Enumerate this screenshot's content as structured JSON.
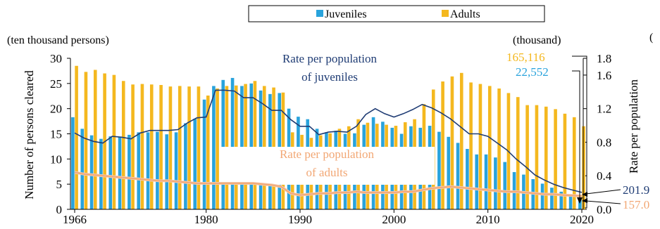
{
  "chart_data": {
    "type": "bar",
    "categories": [
      1966,
      1967,
      1968,
      1969,
      1970,
      1971,
      1972,
      1973,
      1974,
      1975,
      1976,
      1977,
      1978,
      1979,
      1980,
      1981,
      1982,
      1983,
      1984,
      1985,
      1986,
      1987,
      1988,
      1989,
      1990,
      1991,
      1992,
      1993,
      1994,
      1995,
      1996,
      1997,
      1998,
      1999,
      2000,
      2001,
      2002,
      2003,
      2004,
      2005,
      2006,
      2007,
      2008,
      2009,
      2010,
      2011,
      2012,
      2013,
      2014,
      2015,
      2016,
      2017,
      2018,
      2019,
      2020
    ],
    "x_ticks": [
      "1966",
      "1980",
      "1990",
      "2000",
      "2010",
      "2020"
    ],
    "left_axis": {
      "unit": "(ten thousand persons)",
      "label": "Number of persons cleared",
      "ylim": [
        0,
        30
      ],
      "ticks": [
        "0",
        "5",
        "10",
        "15",
        "20",
        "25",
        "30"
      ]
    },
    "right_axis": {
      "unit": "(thousand)",
      "label": "Rate per population",
      "ylim": [
        0,
        1.8
      ],
      "ticks": [
        "0.0",
        "0.4",
        "0.8",
        "1.2",
        "1.6",
        "1.8"
      ]
    },
    "series": [
      {
        "name": "Juveniles",
        "type": "bar",
        "axis": "left",
        "color": "#29a3dc",
        "values": [
          18.3,
          16.0,
          14.7,
          14.0,
          14.5,
          14.3,
          14.8,
          15.3,
          15.3,
          15.4,
          14.9,
          15.3,
          17.1,
          18.0,
          21.8,
          24.5,
          25.7,
          26.1,
          24.5,
          25.0,
          23.6,
          22.9,
          23.1,
          20.0,
          18.4,
          17.9,
          16.0,
          15.3,
          15.6,
          15.0,
          15.1,
          16.8,
          18.3,
          17.4,
          16.2,
          15.0,
          16.5,
          16.2,
          16.6,
          15.4,
          14.4,
          13.2,
          12.0,
          10.9,
          10.9,
          10.3,
          9.4,
          7.4,
          6.9,
          6.0,
          5.1,
          4.3,
          3.5,
          2.8,
          2.3
        ]
      },
      {
        "name": "Adults",
        "type": "bar",
        "axis": "left",
        "color": "#f4b81f",
        "values": [
          28.5,
          27.3,
          27.7,
          27.0,
          26.7,
          25.5,
          24.8,
          24.9,
          24.8,
          24.7,
          24.4,
          24.5,
          24.4,
          24.4,
          22.6,
          24.0,
          24.5,
          24.6,
          24.9,
          25.5,
          24.5,
          24.2,
          23.2,
          15.3,
          14.8,
          14.2,
          14.7,
          15.1,
          16.0,
          16.5,
          17.9,
          17.2,
          17.0,
          16.8,
          16.6,
          17.3,
          17.9,
          20.9,
          23.8,
          25.4,
          26.4,
          27.1,
          25.2,
          24.9,
          24.5,
          24.0,
          23.1,
          22.3,
          20.7,
          20.7,
          20.4,
          19.9,
          19.0,
          18.3,
          16.5
        ]
      },
      {
        "name": "Rate per population of juveniles",
        "type": "line",
        "axis": "right",
        "color": "#1f3c74",
        "values": [
          0.91,
          0.85,
          0.81,
          0.79,
          0.87,
          0.86,
          0.84,
          0.91,
          0.94,
          0.94,
          0.94,
          0.95,
          1.03,
          1.09,
          1.1,
          1.42,
          1.42,
          1.41,
          1.33,
          1.33,
          1.26,
          1.18,
          1.18,
          1.07,
          0.99,
          0.99,
          0.89,
          0.92,
          0.93,
          0.92,
          0.99,
          1.13,
          1.2,
          1.14,
          1.1,
          1.14,
          1.19,
          1.25,
          1.21,
          1.15,
          1.08,
          0.99,
          0.9,
          0.9,
          0.87,
          0.79,
          0.71,
          0.6,
          0.51,
          0.41,
          0.35,
          0.3,
          0.26,
          0.23,
          0.2019
        ]
      },
      {
        "name": "Rate per population of adults",
        "type": "line",
        "axis": "right",
        "color": "#f2a774",
        "values": [
          0.44,
          0.42,
          0.41,
          0.4,
          0.39,
          0.38,
          0.37,
          0.36,
          0.35,
          0.34,
          0.34,
          0.33,
          0.32,
          0.31,
          0.31,
          0.31,
          0.31,
          0.31,
          0.31,
          0.31,
          0.3,
          0.29,
          0.27,
          0.19,
          0.17,
          0.18,
          0.19,
          0.19,
          0.2,
          0.2,
          0.21,
          0.2,
          0.2,
          0.2,
          0.2,
          0.21,
          0.21,
          0.23,
          0.25,
          0.26,
          0.27,
          0.26,
          0.25,
          0.24,
          0.23,
          0.22,
          0.21,
          0.21,
          0.2,
          0.19,
          0.18,
          0.18,
          0.17,
          0.165,
          0.157
        ]
      }
    ],
    "legend": {
      "position": "top-center",
      "items": [
        "Juveniles",
        "Adults"
      ]
    },
    "annotations": {
      "adults_2020": "165,116",
      "juveniles_2020": "22,552",
      "juv_rate_label": "Rate per population\nof juveniles",
      "adult_rate_label": "Rate per population\nof adults",
      "juv_rate_value": "201.9",
      "adult_rate_value": "157.0",
      "right_clip_glyph": "("
    },
    "grid": false
  }
}
